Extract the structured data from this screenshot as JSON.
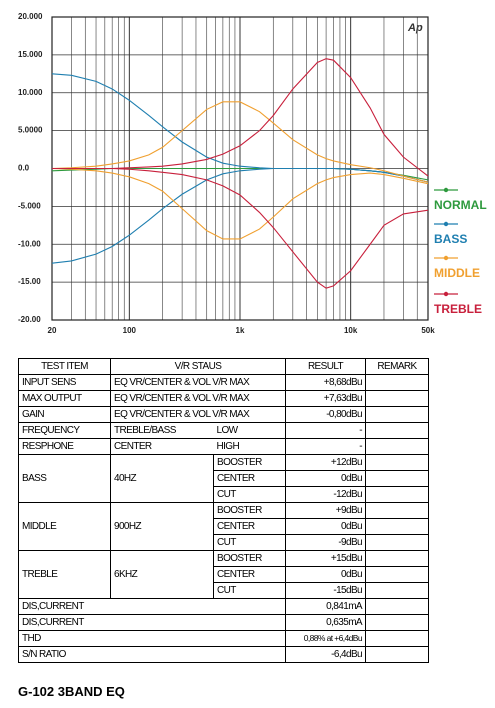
{
  "chart_data": {
    "type": "line",
    "xscale": "log",
    "logo": "Ap",
    "x": [
      20,
      30,
      50,
      70,
      100,
      150,
      200,
      300,
      500,
      700,
      1000,
      1500,
      2000,
      3000,
      5000,
      6000,
      7000,
      10000,
      15000,
      20000,
      30000,
      50000
    ],
    "xlim": [
      20,
      50000
    ],
    "xticks": [
      20,
      100,
      {
        "value": 1000,
        "label": "1k"
      },
      {
        "value": 10000,
        "label": "10k"
      },
      {
        "value": 50000,
        "label": "50k"
      }
    ],
    "x_minor_ticks": [
      30,
      40,
      50,
      60,
      70,
      80,
      90,
      200,
      300,
      400,
      500,
      600,
      700,
      800,
      900,
      2000,
      3000,
      4000,
      5000,
      6000,
      7000,
      8000,
      9000,
      20000,
      30000,
      40000
    ],
    "ylim": [
      -20,
      20
    ],
    "yticks": [
      {
        "value": 20,
        "label": "20.000"
      },
      {
        "value": 15,
        "label": "15.000"
      },
      {
        "value": 10,
        "label": "10.000"
      },
      {
        "value": 5,
        "label": "5.0000"
      },
      {
        "value": 0,
        "label": "0.0"
      },
      {
        "value": -5,
        "label": "-5.000"
      },
      {
        "value": -10,
        "label": "-10.00"
      },
      {
        "value": -15,
        "label": "-15.00"
      },
      {
        "value": -20,
        "label": "-20.00"
      }
    ],
    "grid": true,
    "series": [
      {
        "name": "NORMAL",
        "color": "#2e9a3e",
        "curves": [
          [
            -0.3,
            -0.2,
            -0.1,
            0,
            0,
            0,
            0,
            0,
            0,
            0,
            0,
            0,
            0,
            0,
            0,
            0,
            0,
            -0.1,
            -0.3,
            -0.5,
            -0.9,
            -1.5
          ]
        ]
      },
      {
        "name": "BASS",
        "color": "#1f7fb0",
        "curves": [
          [
            12.5,
            12.3,
            11.5,
            10.5,
            9,
            7,
            5.5,
            3.5,
            1.5,
            0.7,
            0.3,
            0.1,
            0,
            0,
            0,
            0,
            0,
            -0.1,
            -0.3,
            -0.5,
            -1,
            -1.8
          ],
          [
            -12.5,
            -12.2,
            -11.3,
            -10.3,
            -8.8,
            -6.8,
            -5.3,
            -3.4,
            -1.5,
            -0.7,
            -0.3,
            -0.1,
            0,
            0,
            0,
            0,
            0,
            -0.1,
            -0.3,
            -0.5,
            -1,
            -1.8
          ]
        ]
      },
      {
        "name": "MIDDLE",
        "color": "#f0a030",
        "curves": [
          [
            0,
            0.1,
            0.3,
            0.6,
            1,
            1.8,
            2.8,
            5,
            7.8,
            8.8,
            8.8,
            7.5,
            6,
            3.8,
            1.8,
            1.3,
            1,
            0.5,
            0.1,
            -0.3,
            -1,
            -1.8
          ],
          [
            0,
            -0.1,
            -0.3,
            -0.6,
            -1.1,
            -2,
            -3,
            -5.3,
            -8.2,
            -9.3,
            -9.3,
            -8,
            -6.4,
            -4,
            -2,
            -1.5,
            -1.2,
            -0.8,
            -0.6,
            -0.8,
            -1.3,
            -2
          ]
        ]
      },
      {
        "name": "TREBLE",
        "color": "#c8203c",
        "curves": [
          [
            0,
            0,
            0,
            0,
            0.1,
            0.2,
            0.3,
            0.6,
            1.2,
            1.9,
            3,
            5,
            7,
            10.5,
            14,
            14.5,
            14.3,
            12,
            8,
            4.5,
            1.5,
            -1
          ],
          [
            0,
            0,
            0,
            0,
            -0.1,
            -0.3,
            -0.5,
            -0.8,
            -1.5,
            -2.3,
            -3.5,
            -5.8,
            -7.8,
            -11,
            -15,
            -15.8,
            -15.5,
            -13.5,
            -10,
            -7.5,
            -6,
            -5.5
          ]
        ]
      }
    ]
  },
  "table": {
    "header": [
      "TEST ITEM",
      "V/R STAUS",
      "RESULT",
      "REMARK"
    ],
    "rows": [
      [
        "INPUT SENS",
        "EQ VR/CENTER & VOL V/R MAX",
        "+8,68dBu"
      ],
      [
        "MAX OUTPUT",
        "EQ VR/CENTER & VOL V/R MAX",
        "+7,63dBu"
      ],
      [
        "GAIN",
        "EQ VR/CENTER & VOL V/R MAX",
        "-0,80dBu"
      ],
      [
        "FREQUENCY",
        "TREBLE/BASS",
        "LOW",
        "-"
      ],
      [
        "RESPHONE",
        "CENTER",
        "HIGH",
        "-"
      ]
    ],
    "bands": [
      {
        "name": "BASS",
        "freq": "40HZ",
        "settings": [
          [
            "BOOSTER",
            "+12dBu"
          ],
          [
            "CENTER",
            "0dBu"
          ],
          [
            "CUT",
            "-12dBu"
          ]
        ]
      },
      {
        "name": "MIDDLE",
        "freq": "900HZ",
        "settings": [
          [
            "BOOSTER",
            "+9dBu"
          ],
          [
            "CENTER",
            "0dBu"
          ],
          [
            "CUT",
            "-9dBu"
          ]
        ]
      },
      {
        "name": "TREBLE",
        "freq": "6KHZ",
        "settings": [
          [
            "BOOSTER",
            "+15dBu"
          ],
          [
            "CENTER",
            "0dBu"
          ],
          [
            "CUT",
            "-15dBu"
          ]
        ]
      }
    ],
    "footer_rows": [
      [
        "DIS,CURRENT",
        "0,841mA"
      ],
      [
        "DIS,CURRENT",
        "0,635mA"
      ],
      [
        "THD",
        "0,88% at +6,4dBu"
      ],
      [
        "S/N RATIO",
        "-6,4dBu"
      ]
    ]
  },
  "caption": "G-102 3BAND EQ"
}
